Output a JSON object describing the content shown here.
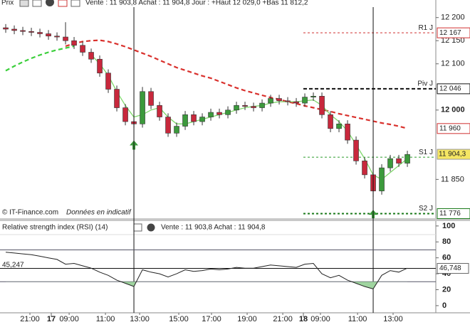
{
  "chart_data": {
    "type": "candlestick",
    "header": {
      "panel": "Prix",
      "quote": "Vente : 11 903,8 Achat : 11 904,8 Jour : +Haut 12 029,0 +Bas 11 812,2"
    },
    "footer_note": "© IT-Finance.com",
    "footer_note2": "Données en indicatif",
    "xlim": [
      -0.67,
      50.33
    ],
    "xticks": [
      {
        "value": 2.83,
        "label": "21:00"
      },
      {
        "value": 5.33,
        "label": "17"
      },
      {
        "value": 7.42,
        "label": "09:00"
      },
      {
        "value": 11.67,
        "label": "11:00"
      },
      {
        "value": 15.67,
        "label": "13:00"
      },
      {
        "value": 20.25,
        "label": "15:00"
      },
      {
        "value": 24.08,
        "label": "17:00"
      },
      {
        "value": 28.25,
        "label": "19:00"
      },
      {
        "value": 32.42,
        "label": "21:00"
      },
      {
        "value": 34.83,
        "label": "18"
      },
      {
        "value": 36.83,
        "label": "09:00"
      },
      {
        "value": 41.17,
        "label": "11:00"
      },
      {
        "value": 45.33,
        "label": "13:00"
      }
    ],
    "ylim": [
      11766,
      12238
    ],
    "yticks": [
      {
        "value": 12200,
        "label": "12 200"
      },
      {
        "value": 12150,
        "label": "12 150"
      },
      {
        "value": 12100,
        "label": "12 100"
      },
      {
        "value": 12000,
        "label": "12 000"
      },
      {
        "value": 11850,
        "label": "11 850"
      }
    ],
    "up_color": "#3c9a3c",
    "down_color": "#c8283c",
    "candles": {
      "open": [
        12178,
        12175,
        12172,
        12170,
        12168,
        12165,
        12160,
        12158,
        12150,
        12140,
        12125,
        12110,
        12080,
        12045,
        12005,
        11975,
        11970,
        12040,
        12010,
        11985,
        11950,
        11965,
        11990,
        11975,
        11985,
        11995,
        11990,
        12000,
        12010,
        12008,
        12005,
        12015,
        12025,
        12020,
        12018,
        12015,
        12028,
        12030,
        11990,
        11960,
        11970,
        11935,
        11890,
        11860,
        11825,
        11875,
        11895,
        11885
      ],
      "high": [
        12186,
        12183,
        12180,
        12178,
        12176,
        12173,
        12168,
        12190,
        12158,
        12148,
        12133,
        12118,
        12088,
        12053,
        12013,
        11983,
        12050,
        12048,
        12018,
        11993,
        11973,
        11998,
        11998,
        11993,
        12003,
        12003,
        12008,
        12018,
        12018,
        12016,
        12023,
        12033,
        12033,
        12028,
        12026,
        12036,
        12038,
        12038,
        11998,
        11978,
        11978,
        11943,
        11898,
        11868,
        11883,
        11903,
        11903,
        11912
      ],
      "low": [
        12167,
        12164,
        12162,
        12160,
        12157,
        12152,
        12150,
        12142,
        12132,
        12117,
        12102,
        12072,
        12037,
        11997,
        11967,
        11962,
        11962,
        12002,
        11977,
        11942,
        11942,
        11957,
        11967,
        11967,
        11977,
        11982,
        11982,
        11992,
        12000,
        11997,
        11997,
        12007,
        12012,
        12010,
        12007,
        12007,
        12020,
        11982,
        11952,
        11952,
        11927,
        11882,
        11852,
        11812,
        11817,
        11867,
        11877,
        11877
      ],
      "close": [
        12175,
        12172,
        12170,
        12168,
        12165,
        12160,
        12158,
        12150,
        12140,
        12125,
        12110,
        12080,
        12045,
        12005,
        11975,
        11970,
        12040,
        12010,
        11985,
        11950,
        11965,
        11990,
        11975,
        11985,
        11995,
        11990,
        12000,
        12010,
        12008,
        12005,
        12015,
        12025,
        12020,
        12018,
        12015,
        12028,
        12030,
        11990,
        11960,
        11970,
        11935,
        11890,
        11860,
        11825,
        11875,
        11895,
        11885,
        11904
      ]
    },
    "series": [
      {
        "color": "#d9302c",
        "dashed": true,
        "values": [
          null,
          null,
          null,
          null,
          null,
          null,
          null,
          12138,
          12144,
          12148,
          12150,
          12151,
          12148,
          12143,
          12137,
          12130,
          12123,
          12116,
          12108,
          12100,
          12092,
          12086,
          12080,
          12074,
          12069,
          12062,
          12055,
          12048,
          12042,
          12037,
          12032,
          12027,
          12023,
          12018,
          12014,
          12009,
          12005,
          12001,
          11997,
          11992,
          11988,
          11984,
          11980,
          11976,
          11972,
          11969,
          11965,
          11960
        ]
      },
      {
        "color": "#3ccf3c",
        "dashed": true,
        "values": [
          12085,
          12095,
          12104,
          12112,
          12119,
          12125,
          12130,
          12134,
          12138,
          null,
          null,
          null,
          null,
          null,
          null,
          null,
          null,
          null,
          null,
          null,
          null,
          null,
          null,
          null,
          null,
          null,
          null,
          null,
          null,
          null,
          null,
          null,
          null,
          null,
          null,
          null,
          null,
          null,
          null,
          null,
          null,
          null,
          null,
          null,
          null,
          null,
          null,
          null
        ]
      },
      {
        "color": "#7ed86a",
        "dashed": false,
        "values": [
          null,
          null,
          null,
          null,
          null,
          null,
          null,
          null,
          null,
          null,
          12120,
          12100,
          12075,
          12040,
          12010,
          11985,
          11990,
          12000,
          12005,
          11985,
          11970,
          11970,
          11975,
          11980,
          11985,
          11990,
          11995,
          12000,
          12005,
          12008,
          12010,
          12015,
          12018,
          12018,
          12018,
          12020,
          12022,
          12010,
          11990,
          11975,
          11955,
          11925,
          11895,
          11860,
          11850,
          11865,
          11880,
          11895
        ]
      }
    ],
    "pivots": [
      {
        "name": "R1 J",
        "value": 12167,
        "label": "12 167",
        "color": "#d03030"
      },
      {
        "name": "Piv J",
        "value": 12046,
        "label": "12 046",
        "color": "#111111"
      },
      {
        "name": "S1 J",
        "value": 11898,
        "color": "#2a9a2a"
      },
      {
        "name": "S2 J",
        "value": 11776,
        "label": "11 776",
        "color": "#1a7a1a"
      }
    ],
    "ma_box": {
      "value": 11960,
      "label": "11 960"
    },
    "price_box": {
      "value": 11904.3,
      "label": "11 904,3"
    },
    "buy_signals": [
      15,
      43
    ],
    "rsi": {
      "title": "Relative strength index (RSI) (14)",
      "quote": "Vente : 11 903,8 Achat : 11 904,8",
      "ylim": [
        -9,
        107
      ],
      "yticks": [
        100,
        80,
        60,
        40,
        20,
        0
      ],
      "levels": [
        70,
        30
      ],
      "values": [
        67,
        66,
        65,
        64,
        62,
        60,
        58,
        52,
        53,
        50,
        47,
        42,
        38,
        32,
        28,
        24,
        45,
        42,
        40,
        36,
        40,
        45,
        43,
        44,
        46,
        45,
        46,
        48,
        47,
        47,
        49,
        51,
        50,
        49,
        48,
        52,
        53,
        40,
        35,
        38,
        32,
        28,
        24,
        21,
        38,
        44,
        42,
        47
      ],
      "left_label": "45,247",
      "current": {
        "value": 46.748,
        "label": "46,748"
      }
    }
  }
}
